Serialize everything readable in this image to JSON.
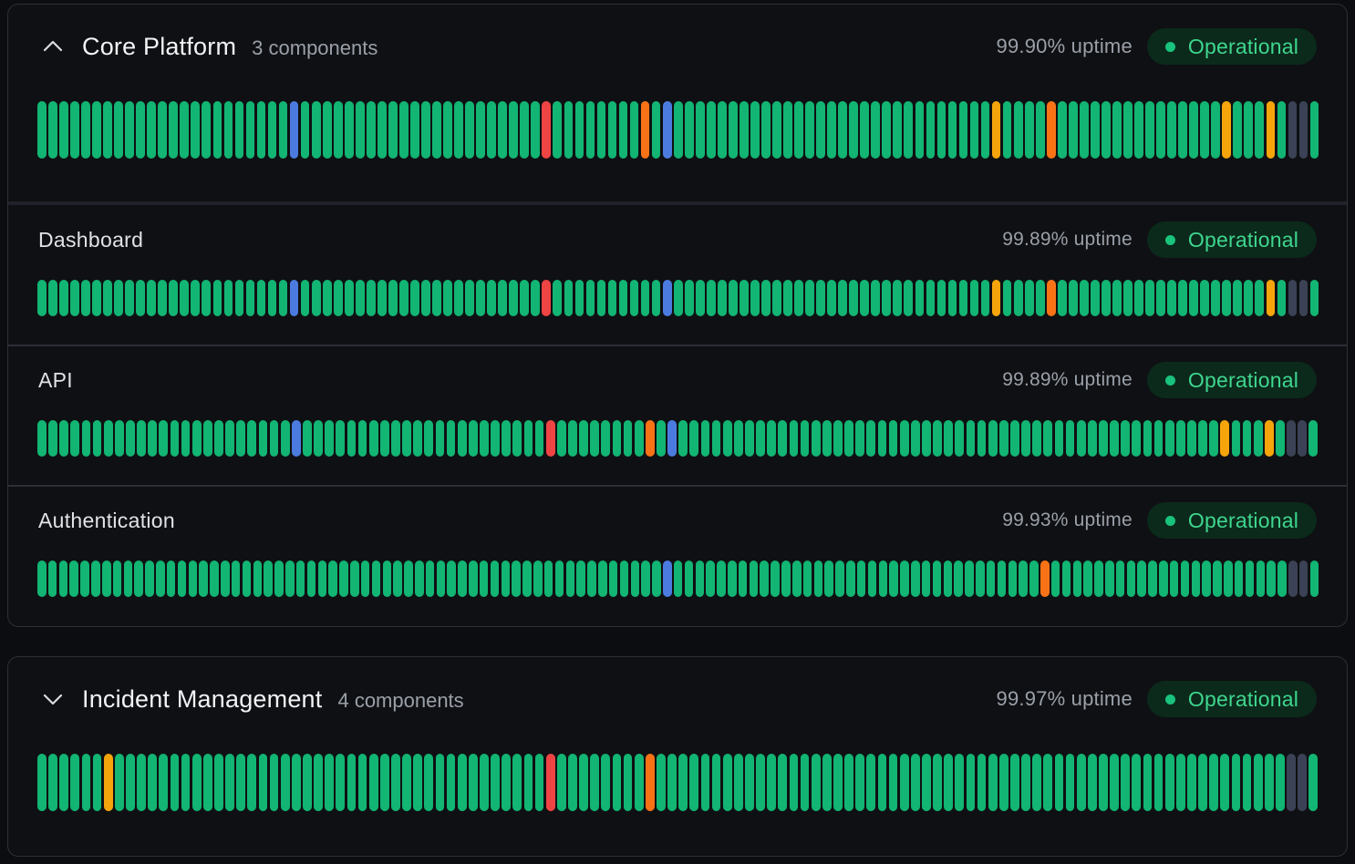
{
  "colors": {
    "up": "#12b573",
    "degraded": "#f5a50b",
    "partial": "#f97316",
    "down": "#ef4444",
    "maintenance": "#4c7be0",
    "nodata": "#3b4256"
  },
  "groups": [
    {
      "id": "core",
      "title": "Core Platform",
      "count_label": "3 components",
      "uptime_label": "99.90% uptime",
      "status_label": "Operational",
      "expanded": true,
      "bars": "uuuuuuuuuuuuuuuuuuuuuummuuuuuuuuuuuuuuuuuuuuuudnuuuuuuuupumuuuuuuuuuuuuuuuuuuuuuuuuuuuuuyuuuppuuuuuuuuuuuuuuuyuuuyuxxu",
      "components": [
        {
          "name": "Dashboard",
          "uptime_label": "99.89% uptime",
          "status_label": "Operational",
          "bars": "uuuuuuuuuuuuuuuuuuuuuummuuuuuuuuuuuuuuuuuuuuuudnuuuuuuuuuumuuuuuuuuuuuuuuuuuuuuuuuuuuuuuyuuuppuuuuuuuuuuuuuuuuuuuyuxxu"
        },
        {
          "name": "API",
          "uptime_label": "99.89% uptime",
          "status_label": "Operational",
          "bars": "uuuuuuuuuuuuuuuuuuuuuummuuuuuuuuuuuuuuuuuuuuuudnuuuuuuuupumuuuuuuuuuuuuuuuuuuuuuuuuuuuuuuuuuuuuuuuuuuuuuuuuuyuuuyuxxu"
        },
        {
          "name": "Authentication",
          "uptime_label": "99.93% uptime",
          "status_label": "Operational",
          "bars": "uuuuuuuuuuuuuuuuuuuuuuuuuuuuuuuuuuuuuuuuuuuuuuuuuuuuuuuuuumuuuuuuuuuuuuuuuuuuuuuuuuuuuuuuuuuupuuuuuuuuuuuuuuuuuuuuuuxxu"
        }
      ]
    },
    {
      "id": "incident",
      "title": "Incident Management",
      "count_label": "4 components",
      "uptime_label": "99.97% uptime",
      "status_label": "Operational",
      "expanded": false,
      "bars": "uuuuuuyuuuuuuuuuuuuuuuuuuuuuuuuuuuuuuuuuuuuuuudnuuuuuuuupuuuuuuuuuuuuuuuuuuuuuuuuuuuuuuuuuuuuuuuuuuuuuuuuuuuuuuuuuxxu"
    }
  ]
}
